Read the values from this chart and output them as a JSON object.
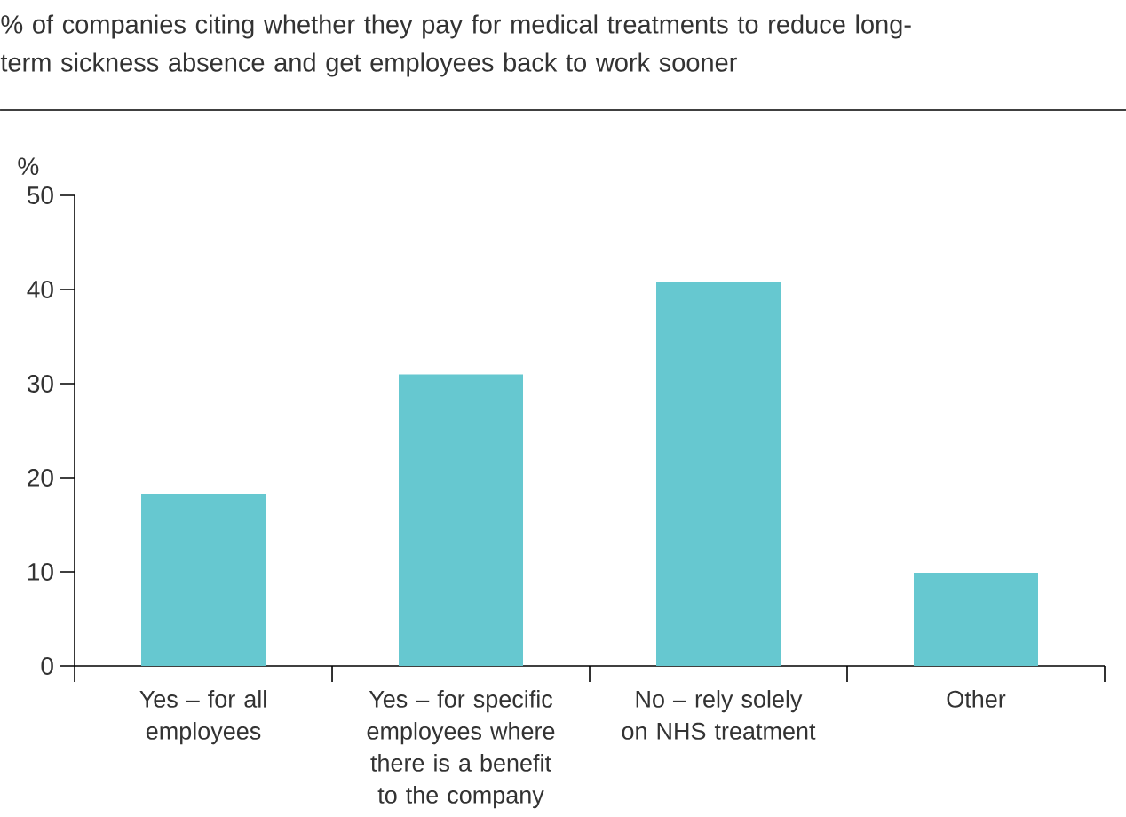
{
  "chart_data": {
    "type": "bar",
    "title": "% of companies citing whether they pay for medical treatments to reduce long- term sickness absence and get employees back to work sooner",
    "ylabel": "%",
    "categories": [
      "Yes – for all employees",
      "Yes – for specific employees where there is a benefit to the company",
      "No – rely solely on NHS treatment",
      "Other"
    ],
    "values": [
      18.3,
      31,
      40.8,
      9.9
    ],
    "color": "#66c8d0",
    "ylim": [
      0,
      50
    ],
    "yticks": [
      0,
      10,
      20,
      30,
      40,
      50
    ],
    "grid": false
  }
}
